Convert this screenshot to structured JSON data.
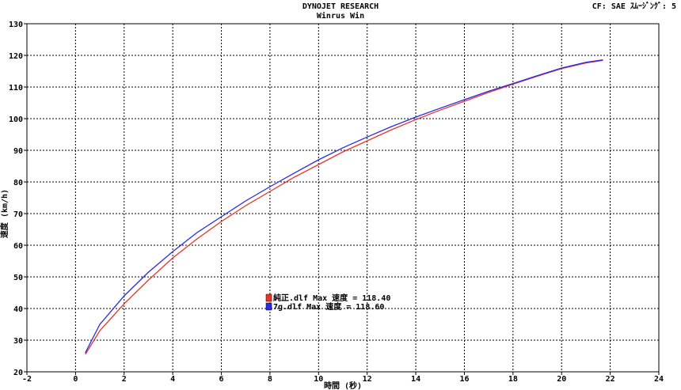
{
  "header": {
    "title": "DYNOJET  RESEARCH",
    "subtitle": "Winrus Win",
    "cf_label": "CF: SAE  ｽﾑｰｼﾞﾝｸﾞ: 5"
  },
  "colors": {
    "series1": "#e8352a",
    "series2": "#2a2ae8",
    "grid": "#000000",
    "background": "#ffffff"
  },
  "chart_data": {
    "type": "line",
    "xlabel": "時間 (秒)",
    "ylabel": "速度 (km/h)",
    "xlim": [
      -2,
      24
    ],
    "ylim": [
      20,
      130
    ],
    "xticks": [
      -2,
      0,
      2,
      4,
      6,
      8,
      10,
      12,
      14,
      16,
      18,
      20,
      22,
      24
    ],
    "yticks": [
      20,
      30,
      40,
      50,
      60,
      70,
      80,
      90,
      100,
      110,
      120,
      130
    ],
    "grid": true,
    "legend_position": "center",
    "series": [
      {
        "name": "純正.dlf Max 速度 = 118.40",
        "color": "#e8352a",
        "x": [
          0.4,
          1,
          2,
          3,
          4,
          5,
          6,
          7,
          8,
          9,
          10,
          11,
          12,
          13,
          14,
          15,
          16,
          17,
          18,
          19,
          20,
          21,
          21.7
        ],
        "y": [
          25.5,
          33,
          41.5,
          49,
          56,
          62,
          67.5,
          72.5,
          77,
          81.5,
          85.5,
          89.5,
          93,
          96.5,
          99.7,
          102.7,
          105.5,
          108.3,
          110.9,
          113.4,
          115.8,
          117.6,
          118.4
        ]
      },
      {
        "name": "7g.dlf Max 速度 = 118.60",
        "color": "#2a2ae8",
        "x": [
          0.4,
          1,
          2,
          3,
          4,
          5,
          6,
          7,
          8,
          9,
          10,
          11,
          12,
          13,
          14,
          15,
          16,
          17,
          18,
          19,
          20,
          21,
          21.7
        ],
        "y": [
          26,
          35,
          44,
          51.5,
          58,
          64,
          69,
          74,
          78.5,
          82.8,
          87,
          90.8,
          94.2,
          97.5,
          100.5,
          103.3,
          106,
          108.7,
          111.1,
          113.6,
          116,
          117.8,
          118.6
        ]
      }
    ]
  }
}
